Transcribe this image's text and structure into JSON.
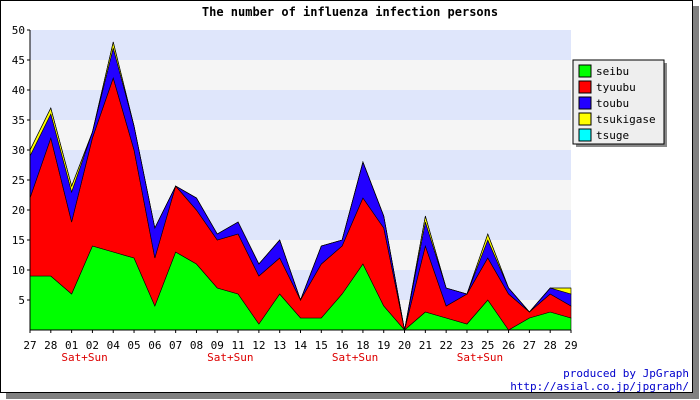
{
  "chart_data": {
    "type": "area",
    "stacked": true,
    "title": "The number of influenza infection persons",
    "xlabel": "",
    "ylabel": "",
    "ylim": [
      0,
      50
    ],
    "yticks": [
      5,
      10,
      15,
      20,
      25,
      30,
      35,
      40,
      45,
      50
    ],
    "grid": true,
    "legend_position": "right",
    "categories": [
      "27",
      "28",
      "01",
      "02",
      "04",
      "05",
      "06",
      "07",
      "08",
      "09",
      "11",
      "12",
      "13",
      "14",
      "15",
      "16",
      "18",
      "19",
      "20",
      "21",
      "22",
      "23",
      "25",
      "26",
      "27",
      "28",
      "29"
    ],
    "category_notes": [
      {
        "index": 2,
        "label": "Sat+Sun"
      },
      {
        "index": 9,
        "label": "Sat+Sun"
      },
      {
        "index": 15,
        "label": "Sat+Sun"
      },
      {
        "index": 21,
        "label": "Sat+Sun"
      }
    ],
    "series": [
      {
        "name": "seibu",
        "color": "#00ff00",
        "values": [
          9,
          9,
          6,
          14,
          13,
          12,
          4,
          13,
          11,
          7,
          6,
          1,
          6,
          2,
          2,
          6,
          11,
          4,
          0,
          3,
          2,
          1,
          5,
          0,
          2,
          3,
          2
        ]
      },
      {
        "name": "tyuubu",
        "color": "#ff0000",
        "values": [
          13,
          23,
          12,
          18,
          29,
          18,
          8,
          11,
          9,
          8,
          10,
          8,
          6,
          3,
          9,
          8,
          11,
          13,
          0,
          11,
          2,
          5,
          7,
          6,
          1,
          3,
          2
        ]
      },
      {
        "name": "toubu",
        "color": "#2200ff",
        "values": [
          7,
          4,
          5,
          1,
          5,
          4,
          5,
          0,
          2,
          1,
          2,
          2,
          3,
          0,
          3,
          1,
          6,
          2,
          0,
          4,
          3,
          0,
          3,
          1,
          0,
          1,
          2
        ]
      },
      {
        "name": "tsukigase",
        "color": "#ffff00",
        "values": [
          1,
          1,
          1,
          0,
          1,
          0,
          0,
          0,
          0,
          0,
          0,
          0,
          0,
          0,
          0,
          0,
          0,
          0,
          0,
          1,
          0,
          0,
          1,
          0,
          0,
          0,
          1
        ]
      },
      {
        "name": "tsuge",
        "color": "#00ffff",
        "values": [
          0,
          0,
          0,
          0,
          0,
          0,
          0,
          0,
          0,
          0,
          0,
          0,
          0,
          0,
          0,
          0,
          0,
          0,
          0,
          0,
          0,
          0,
          0,
          0,
          0,
          0,
          0
        ]
      }
    ],
    "credits": [
      "produced by JpGraph",
      "http://asial.co.jp/jpgraph/"
    ]
  },
  "colors": {
    "band_light": "#dfe6fb",
    "band_pale": "#f5f5f5",
    "note": "#dd0000",
    "credit": "#0000cc"
  }
}
